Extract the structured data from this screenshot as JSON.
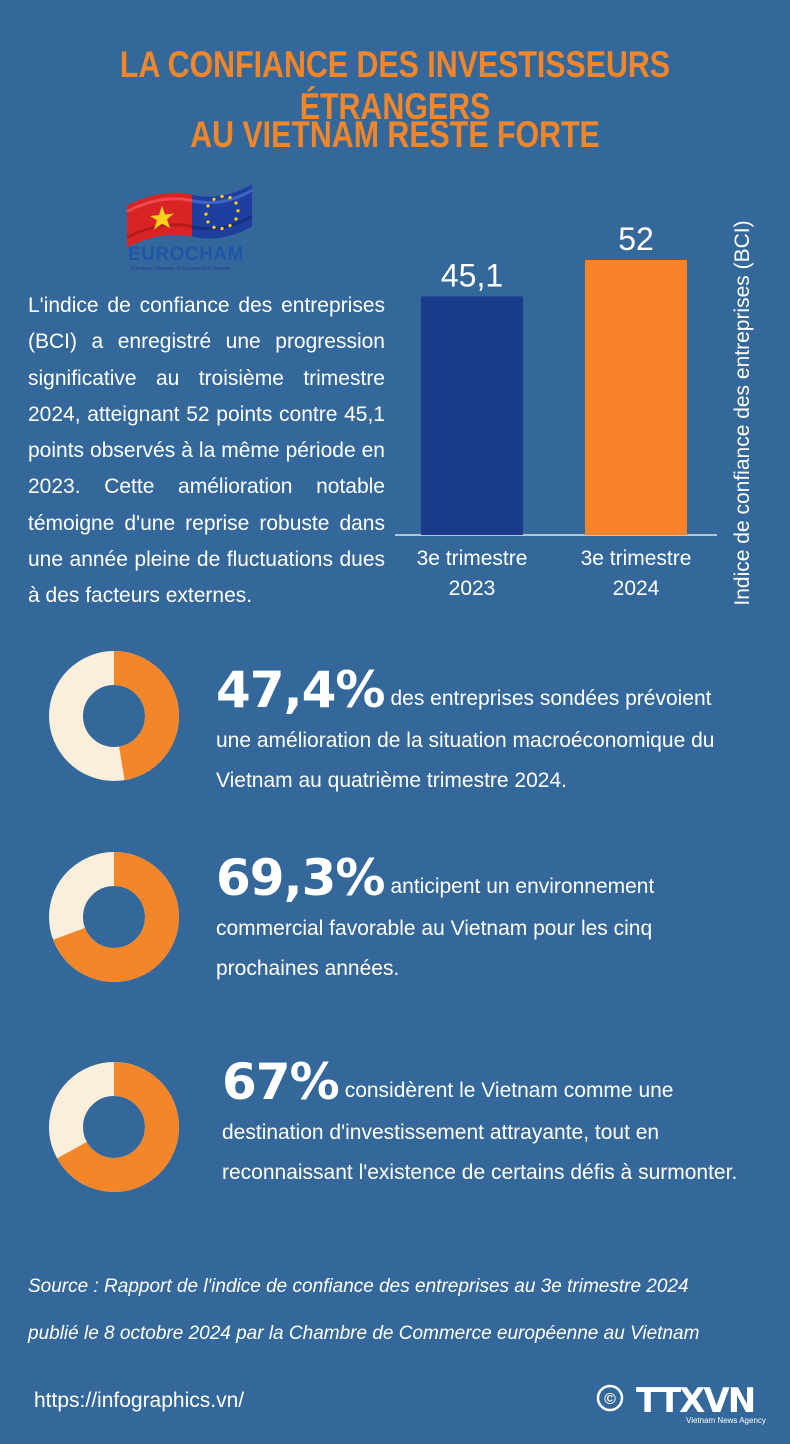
{
  "title": {
    "line1": "LA CONFIANCE DES INVESTISSEURS ÉTRANGERS",
    "line2": "AU VIETNAM RESTE FORTE"
  },
  "logo": {
    "name": "EUROCHAM",
    "subtitle": "European Chamber of Commerce in Vietnam"
  },
  "intro_text": "L'indice de confiance des entreprises (BCI) a enregistré une progression significative au troisième trimestre 2024, atteignant 52 points contre 45,1 points observés à la même période en 2023. Cette amélioration notable témoigne d'une reprise robuste dans une année pleine de fluctuations dues à des facteurs externes.",
  "chart_data": {
    "type": "bar",
    "categories": [
      [
        "3e trimestre",
        "2023"
      ],
      [
        "3e trimestre",
        "2024"
      ]
    ],
    "values": [
      45.1,
      52
    ],
    "value_labels": [
      "45,1",
      "52"
    ],
    "colors": [
      "#1a3a8a",
      "#f8832a"
    ],
    "ylabel": "Indice de confiance des entreprises (BCI)",
    "ylim": [
      0,
      60
    ]
  },
  "stats": [
    {
      "percent": "47,4%",
      "value": 47.4,
      "line1": "des entreprises sondées prévoient",
      "line2": "une amélioration de la situation macroéconomique du",
      "line3": "Vietnam au quatrième trimestre 2024."
    },
    {
      "percent": "69,3%",
      "value": 69.3,
      "line1": "anticipent un environnement",
      "line2": "commercial favorable au Vietnam pour les cinq",
      "line3": "prochaines années."
    },
    {
      "percent": "67%",
      "value": 67,
      "line1": "considèrent le Vietnam comme une",
      "line2": "destination d'investissement attrayante, tout en",
      "line3": "reconnaissant l'existence de certains défis à surmonter."
    }
  ],
  "source": {
    "line1": "Source : Rapport de l'indice de confiance des entreprises au 3e trimestre 2024",
    "line2": "publié le 8 octobre 2024 par la Chambre de Commerce européenne au Vietnam"
  },
  "footer": {
    "url": "https://infographics.vn/",
    "brand": "TTXVN",
    "brand_sub": "Vietnam News Agency",
    "copyright": "©"
  },
  "colors": {
    "background": "#35689a",
    "accent": "#f4862a",
    "donut_light": "#fbeedb",
    "bar_2023": "#1a3a8a",
    "bar_2024": "#f8832a"
  }
}
